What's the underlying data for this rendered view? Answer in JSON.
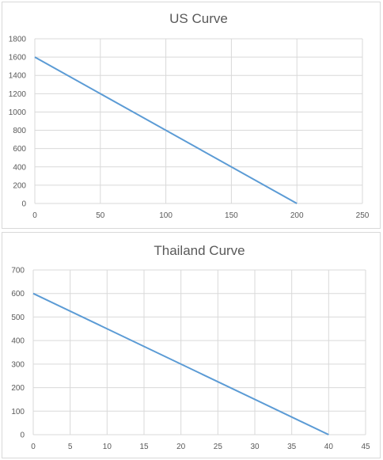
{
  "chart_data": [
    {
      "type": "line",
      "title": "US Curve",
      "xlabel": "",
      "ylabel": "",
      "x": [
        0,
        200
      ],
      "series": [
        {
          "values": [
            1600,
            0
          ]
        }
      ],
      "xlim": [
        0,
        250
      ],
      "ylim": [
        0,
        1800
      ],
      "xticks": [
        0,
        50,
        100,
        150,
        200,
        250
      ],
      "yticks": [
        0,
        200,
        400,
        600,
        800,
        1000,
        1200,
        1400,
        1600,
        1800
      ],
      "grid": true,
      "line_color": "#5b9bd5"
    },
    {
      "type": "line",
      "title": "Thailand Curve",
      "xlabel": "",
      "ylabel": "",
      "x": [
        0,
        40
      ],
      "series": [
        {
          "values": [
            600,
            0
          ]
        }
      ],
      "xlim": [
        0,
        45
      ],
      "ylim": [
        0,
        700
      ],
      "xticks": [
        0,
        5,
        10,
        15,
        20,
        25,
        30,
        35,
        40,
        45
      ],
      "yticks": [
        0,
        100,
        200,
        300,
        400,
        500,
        600,
        700
      ],
      "grid": true,
      "line_color": "#5b9bd5"
    }
  ]
}
